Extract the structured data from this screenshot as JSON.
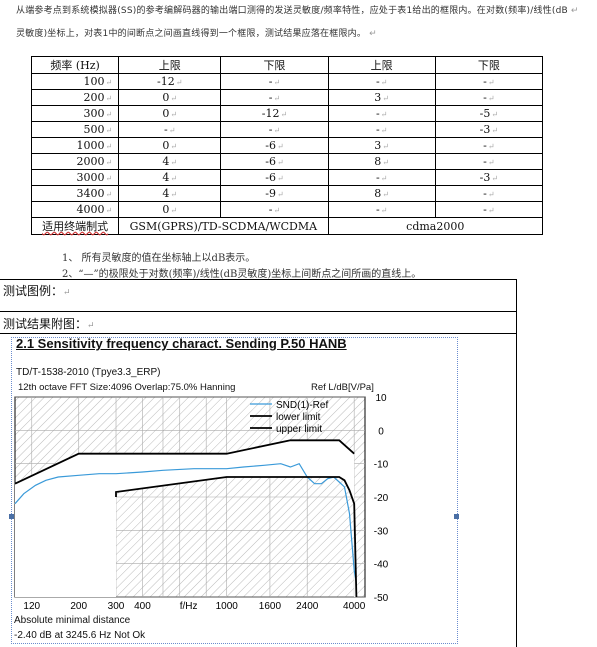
{
  "intro": {
    "line1": "从端参考点到系统模拟器(SS)的参考编解码器的输出端口测得的发送灵敏度/频率特性，应处于表1给出的框限内。在对数(频率)/线性(dB",
    "line2": "灵敏度)坐标上，对表1中的间断点之间画直线得到一个框限，测试结果应落在框限内。"
  },
  "table": {
    "headers": [
      "频率 (Hz)",
      "上限",
      "下限",
      "上限",
      "下限"
    ],
    "rows": [
      [
        "100",
        "-12",
        "-",
        "-",
        "-"
      ],
      [
        "200",
        "0",
        "-",
        "3",
        "-"
      ],
      [
        "300",
        "0",
        "-12",
        "-",
        "-5"
      ],
      [
        "500",
        "-",
        "-",
        "-",
        "-3"
      ],
      [
        "1000",
        "0",
        "-6",
        "3",
        "-"
      ],
      [
        "2000",
        "4",
        "-6",
        "8",
        "-"
      ],
      [
        "3000",
        "4",
        "-6",
        "-",
        "-3"
      ],
      [
        "3400",
        "4",
        "-9",
        "8",
        "-"
      ],
      [
        "4000",
        "0",
        "-",
        "-",
        "-"
      ]
    ],
    "footer_label": "适用终端制式",
    "footer_col1": "GSM(GPRS)/TD-SCDMA/WCDMA",
    "footer_col2": "cdma2000"
  },
  "notes": {
    "note1": "1、 所有灵敏度的值在坐标轴上以dB表示。",
    "note2": "2、“—”的极限处于对数(频率)/线性(dB灵敏度)坐标上间断点之间所画的直线上。"
  },
  "sections": {
    "test_chart": "测试图例：",
    "result_chart": "测试结果附图："
  },
  "chart_data": {
    "type": "line",
    "title": "2.1 Sensitivity frequency charact. Sending P.50 HANB",
    "subtitle": "TD/T-1538-2010 (Tpye3.3_ERP)",
    "info": "12th octave  FFT Size:4096  Overlap:75.0%  Hanning",
    "ylabel": "Ref L/dB[V/Pa]",
    "xlabel": "f/Hz",
    "x_scale": "log",
    "xlim": [
      100,
      4500
    ],
    "ylim": [
      -50,
      10
    ],
    "x_ticks": [
      "120",
      "200",
      "300",
      "400",
      "f/Hz",
      "1000",
      "1600",
      "2400",
      "4000"
    ],
    "y_ticks": [
      "10",
      "0",
      "-10",
      "-20",
      "-30",
      "-40",
      "-50"
    ],
    "legend": [
      "SND(1)-Ref",
      "lower limit",
      "upper limit"
    ],
    "legend_position": "top-right",
    "series": [
      {
        "name": "SND(1)-Ref",
        "color": "#3a9ad9",
        "points": [
          [
            100,
            -22
          ],
          [
            110,
            -19
          ],
          [
            125,
            -16.5
          ],
          [
            140,
            -15
          ],
          [
            160,
            -14
          ],
          [
            200,
            -13.5
          ],
          [
            250,
            -13
          ],
          [
            300,
            -13
          ],
          [
            400,
            -12.5
          ],
          [
            500,
            -12
          ],
          [
            700,
            -11.5
          ],
          [
            1000,
            -11.5
          ],
          [
            1200,
            -11
          ],
          [
            1500,
            -10.5
          ],
          [
            1800,
            -10
          ],
          [
            2000,
            -11
          ],
          [
            2200,
            -10
          ],
          [
            2400,
            -14
          ],
          [
            2600,
            -16
          ],
          [
            2800,
            -16
          ],
          [
            3000,
            -14.5
          ],
          [
            3200,
            -14
          ],
          [
            3400,
            -15.5
          ],
          [
            3600,
            -17
          ],
          [
            3800,
            -25
          ],
          [
            4000,
            -42
          ],
          [
            4100,
            -46
          ]
        ]
      },
      {
        "name": "lower limit",
        "color": "#000000",
        "points": [
          [
            300,
            -20
          ],
          [
            300,
            -18.5
          ],
          [
            1000,
            -14
          ],
          [
            3000,
            -14
          ],
          [
            3400,
            -14
          ],
          [
            3600,
            -15
          ],
          [
            3800,
            -18
          ],
          [
            4000,
            -22
          ],
          [
            4100,
            -50
          ]
        ]
      },
      {
        "name": "upper limit",
        "color": "#000000",
        "points": [
          [
            100,
            -16
          ],
          [
            200,
            -7
          ],
          [
            1000,
            -7
          ],
          [
            2000,
            -3
          ],
          [
            3000,
            -3
          ],
          [
            3400,
            -3
          ],
          [
            4000,
            -7
          ]
        ]
      }
    ],
    "annotation_line1": "Absolute minimal distance",
    "annotation_line2": "-2.40 dB at 3245.6 Hz Not Ok"
  }
}
